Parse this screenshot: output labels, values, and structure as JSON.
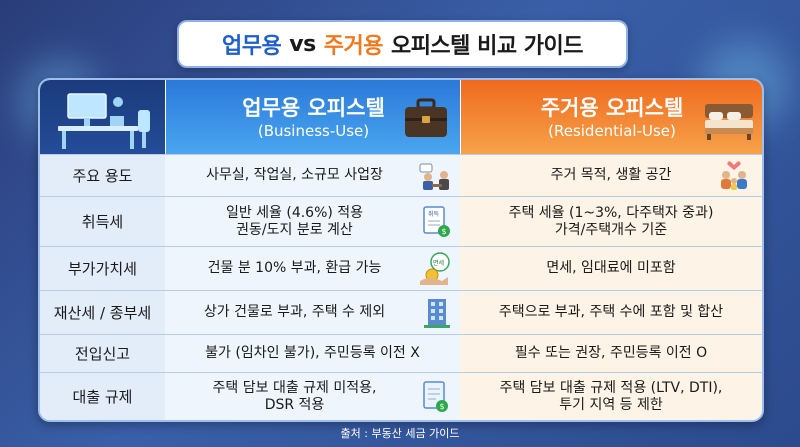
{
  "title": {
    "part_business": "업무용",
    "part_vs": "vs",
    "part_residential": "주거용",
    "part_rest": "오피스텔 비교 가이드"
  },
  "header": {
    "business": {
      "title": "업무용 오피스텔",
      "subtitle": "(Business-Use)"
    },
    "residential": {
      "title": "주거용 오피스텔",
      "subtitle": "(Residential-Use)"
    }
  },
  "rows": [
    {
      "label": "주요 용도",
      "business": [
        "사무실, 작업실, 소규모 사업장"
      ],
      "residential": [
        "주거 목적, 생활 공간"
      ],
      "icon": "office-workers-icon"
    },
    {
      "label": "취득세",
      "business": [
        "일반 세율 (4.6%) 적용",
        "권동/도지 분로 계산"
      ],
      "residential": [
        "주택 세율 (1~3%, 다주택자 중과)",
        "가격/주택개수 기준"
      ],
      "icon": "tax-document-icon"
    },
    {
      "label": "부가가치세",
      "business": [
        "건물 분 10% 부과, 환급 가능"
      ],
      "residential": [
        "면세, 임대료에 미포함"
      ],
      "icon": "coin-hand-icon"
    },
    {
      "label": "재산세 / 종부세",
      "business": [
        "상가 건물로 부과, 주택 수 제외"
      ],
      "residential": [
        "주택으로 부과, 주택 수에 포함 및 합산"
      ],
      "icon": "office-building-icon"
    },
    {
      "label": "전입신고",
      "business": [
        "불가 (임차인 불가), 주민등록 이전 X"
      ],
      "residential": [
        "필수 또는 권장, 주민등록 이전 O"
      ],
      "icon": ""
    },
    {
      "label": "대출 규제",
      "business": [
        "주택 담보 대출 규제 미적용,",
        "DSR 적용"
      ],
      "residential": [
        "주택 담보 대출 규제 적용 (LTV, DTI),",
        "투기 지역 등 제한"
      ],
      "icon": "loan-document-icon"
    }
  ],
  "icon_labels": {
    "tax_doc": "취득",
    "coin_bubble": "면세"
  },
  "footer": "출처 : 부동산 세금 가이드",
  "colors": {
    "business_accent": "#1f5fc9",
    "residential_accent": "#f0791e",
    "background": "#2c4a8c"
  }
}
